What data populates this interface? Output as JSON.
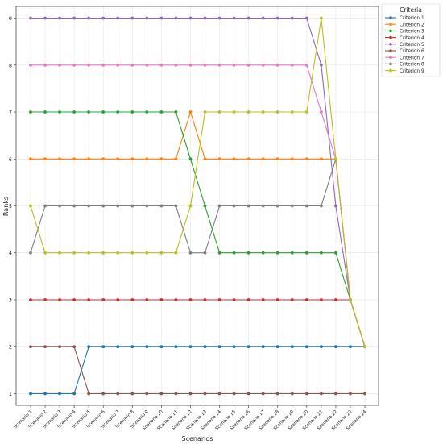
{
  "chart_data": {
    "type": "line",
    "xlabel": "Scenarios",
    "ylabel": "Ranks",
    "categories": [
      "Scenario 1",
      "Scenario 2",
      "Scenario 3",
      "Scenario 4",
      "Scenario 5",
      "Scenario 6",
      "Scenario 7",
      "Scenario 8",
      "Scenario 9",
      "Scenario 10",
      "Scenario 11",
      "Scenario 12",
      "Scenario 13",
      "Scenario 14",
      "Scenario 15",
      "Scenario 16",
      "Scenario 17",
      "Scenario 18",
      "Scenario 19",
      "Scenario 20",
      "Scenario 21",
      "Scenario 22",
      "Scenario 23",
      "Scenario 24"
    ],
    "yticks": [
      1,
      2,
      3,
      4,
      5,
      6,
      7,
      8,
      9
    ],
    "ylim": [
      0.75,
      9.25
    ],
    "grid": true,
    "legend": {
      "title": "Criteria",
      "placement": "outside-right"
    },
    "series": [
      {
        "name": "Criterion 1",
        "color": "#1f77b4",
        "values": [
          1,
          1,
          1,
          1,
          2,
          2,
          2,
          2,
          2,
          2,
          2,
          2,
          2,
          2,
          2,
          2,
          2,
          2,
          2,
          2,
          2,
          2,
          2,
          2
        ]
      },
      {
        "name": "Criterion 2",
        "color": "#ff7f0e",
        "values": [
          6,
          6,
          6,
          6,
          6,
          6,
          6,
          6,
          6,
          6,
          6,
          7,
          6,
          6,
          6,
          6,
          6,
          6,
          6,
          6,
          6,
          6,
          3,
          2
        ]
      },
      {
        "name": "Criterion 3",
        "color": "#2ca02c",
        "values": [
          7,
          7,
          7,
          7,
          7,
          7,
          7,
          7,
          7,
          7,
          7,
          6,
          5,
          4,
          4,
          4,
          4,
          4,
          4,
          4,
          4,
          4,
          3,
          2
        ]
      },
      {
        "name": "Criterion 4",
        "color": "#d62728",
        "values": [
          3,
          3,
          3,
          3,
          3,
          3,
          3,
          3,
          3,
          3,
          3,
          3,
          3,
          3,
          3,
          3,
          3,
          3,
          3,
          3,
          3,
          3,
          3,
          2
        ]
      },
      {
        "name": "Criterion 5",
        "color": "#9467bd",
        "values": [
          9,
          9,
          9,
          9,
          9,
          9,
          9,
          9,
          9,
          9,
          9,
          9,
          9,
          9,
          9,
          9,
          9,
          9,
          9,
          9,
          8,
          5,
          3,
          2
        ]
      },
      {
        "name": "Criterion 6",
        "color": "#8c564b",
        "values": [
          2,
          2,
          2,
          2,
          1,
          1,
          1,
          1,
          1,
          1,
          1,
          1,
          1,
          1,
          1,
          1,
          1,
          1,
          1,
          1,
          1,
          1,
          1,
          1
        ]
      },
      {
        "name": "Criterion 7",
        "color": "#e377c2",
        "values": [
          8,
          8,
          8,
          8,
          8,
          8,
          8,
          8,
          8,
          8,
          8,
          8,
          8,
          8,
          8,
          8,
          8,
          8,
          8,
          8,
          7,
          6,
          3,
          2
        ]
      },
      {
        "name": "Criterion 8",
        "color": "#7f7f7f",
        "values": [
          4,
          5,
          5,
          5,
          5,
          5,
          5,
          5,
          5,
          5,
          5,
          4,
          4,
          5,
          5,
          5,
          5,
          5,
          5,
          5,
          5,
          6,
          3,
          2
        ]
      },
      {
        "name": "Criterion 9",
        "color": "#bcbd22",
        "values": [
          5,
          4,
          4,
          4,
          4,
          4,
          4,
          4,
          4,
          4,
          4,
          5,
          7,
          7,
          7,
          7,
          7,
          7,
          7,
          7,
          9,
          6,
          3,
          2
        ]
      }
    ]
  }
}
